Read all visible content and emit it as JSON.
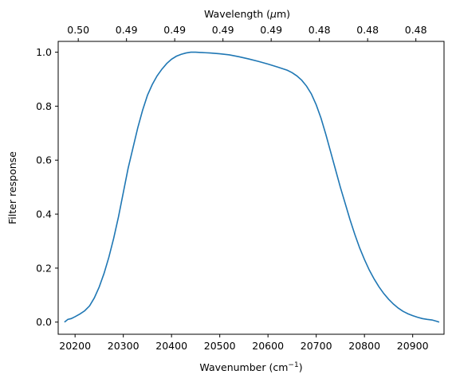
{
  "chart_data": {
    "type": "line",
    "xlabel": "Wavenumber (cm",
    "xlabel_sup": "−1",
    "xlabel_close": ")",
    "ylabel": "Filter response",
    "top_xlabel": "Wavelength (",
    "top_xlabel_mu": "μ",
    "top_xlabel_unit": "m)",
    "xlim": [
      20165,
      20965
    ],
    "ylim": [
      -0.045,
      1.04
    ],
    "x_ticks": [
      20200,
      20300,
      20400,
      20500,
      20600,
      20700,
      20800,
      20900
    ],
    "x_tick_labels": [
      "20200",
      "20300",
      "20400",
      "20500",
      "20600",
      "20700",
      "20800",
      "20900"
    ],
    "y_ticks": [
      0.0,
      0.2,
      0.4,
      0.6,
      0.8,
      1.0
    ],
    "y_tick_labels": [
      "0.0",
      "0.2",
      "0.4",
      "0.6",
      "0.8",
      "1.0"
    ],
    "top_ticks": [
      20200,
      20300,
      20400,
      20500,
      20600,
      20700,
      20800,
      20900
    ],
    "top_tick_labels": [
      "0.50",
      "0.49",
      "0.49",
      "0.49",
      "0.49",
      "0.48",
      "0.48",
      "0.48"
    ],
    "color": "#1f77b4",
    "grid": false,
    "series": [
      {
        "x": [
          20178,
          20185,
          20192,
          20200,
          20210,
          20220,
          20230,
          20240,
          20250,
          20260,
          20270,
          20280,
          20290,
          20300,
          20310,
          20320,
          20330,
          20340,
          20350,
          20360,
          20370,
          20380,
          20390,
          20400,
          20410,
          20420,
          20430,
          20440,
          20450,
          20460,
          20470,
          20480,
          20500,
          20520,
          20540,
          20560,
          20580,
          20600,
          20620,
          20640,
          20650,
          20660,
          20670,
          20680,
          20690,
          20700,
          20710,
          20720,
          20730,
          20740,
          20750,
          20760,
          20770,
          20780,
          20790,
          20800,
          20810,
          20820,
          20830,
          20840,
          20850,
          20860,
          20870,
          20880,
          20890,
          20900,
          20910,
          20920,
          20930,
          20940,
          20950,
          20955
        ],
        "y": [
          0.0,
          0.01,
          0.013,
          0.02,
          0.03,
          0.042,
          0.06,
          0.09,
          0.13,
          0.18,
          0.24,
          0.31,
          0.39,
          0.48,
          0.57,
          0.645,
          0.72,
          0.785,
          0.84,
          0.88,
          0.912,
          0.937,
          0.958,
          0.974,
          0.985,
          0.992,
          0.997,
          1.0,
          1.0,
          0.999,
          0.998,
          0.997,
          0.994,
          0.99,
          0.983,
          0.975,
          0.966,
          0.956,
          0.945,
          0.933,
          0.924,
          0.912,
          0.896,
          0.874,
          0.845,
          0.805,
          0.755,
          0.695,
          0.63,
          0.565,
          0.5,
          0.44,
          0.38,
          0.325,
          0.275,
          0.232,
          0.193,
          0.16,
          0.131,
          0.106,
          0.085,
          0.067,
          0.052,
          0.04,
          0.031,
          0.024,
          0.018,
          0.013,
          0.01,
          0.008,
          0.003,
          0.0
        ]
      }
    ]
  }
}
